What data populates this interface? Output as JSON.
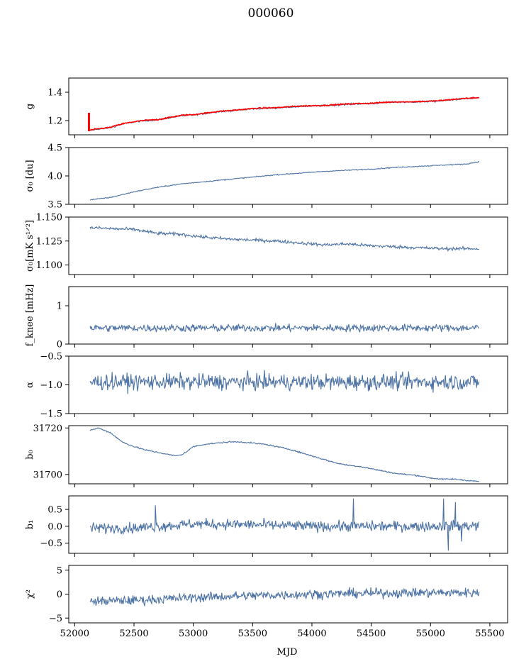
{
  "figure": {
    "title": "000060",
    "xlabel": "MJD"
  },
  "colors": {
    "series": "#4c72a4",
    "highlight": "#ff0000",
    "frame": "#000000"
  },
  "chart_data": [
    {
      "type": "line",
      "ylabel": "g",
      "xlim": [
        51950,
        55650
      ],
      "ylim": [
        1.1,
        1.5
      ],
      "yticks": [
        1.2,
        1.4
      ],
      "ytick_labels": [
        "1.2",
        "1.4"
      ],
      "x_range": [
        52120,
        55410
      ],
      "series": [
        {
          "x": [
            52120,
            52200,
            52300,
            52400,
            52500,
            52600,
            52700,
            52800,
            52900,
            53000,
            53100,
            53200,
            53300,
            53400,
            53500,
            53600,
            53700,
            53800,
            53900,
            54000,
            54100,
            54200,
            54300,
            54400,
            54500,
            54600,
            54700,
            54800,
            54900,
            55000,
            55100,
            55200,
            55300,
            55410
          ],
          "y": [
            1.13,
            1.14,
            1.15,
            1.175,
            1.19,
            1.2,
            1.205,
            1.22,
            1.235,
            1.24,
            1.25,
            1.262,
            1.268,
            1.275,
            1.283,
            1.287,
            1.289,
            1.295,
            1.3,
            1.303,
            1.305,
            1.31,
            1.315,
            1.318,
            1.32,
            1.326,
            1.33,
            1.33,
            1.332,
            1.335,
            1.34,
            1.348,
            1.355,
            1.36
          ]
        }
      ],
      "highlight_spike": {
        "x": 52120,
        "y_top": 1.255,
        "y_bottom": 1.125
      },
      "noise": 0.004
    },
    {
      "type": "line",
      "ylabel": "σ₀ [du]",
      "xlim": [
        51950,
        55650
      ],
      "ylim": [
        3.5,
        4.5
      ],
      "yticks": [
        3.5,
        4.0,
        4.5
      ],
      "ytick_labels": [
        "3.5",
        "4.0",
        "4.5"
      ],
      "x_range": [
        52130,
        55410
      ],
      "series": [
        {
          "x": [
            52130,
            52300,
            52500,
            52700,
            52900,
            53100,
            53300,
            53500,
            53700,
            53900,
            54100,
            54300,
            54500,
            54700,
            54900,
            55100,
            55300,
            55410
          ],
          "y": [
            3.58,
            3.62,
            3.72,
            3.8,
            3.86,
            3.9,
            3.94,
            3.98,
            4.02,
            4.05,
            4.08,
            4.1,
            4.12,
            4.15,
            4.17,
            4.19,
            4.21,
            4.25
          ]
        }
      ],
      "noise": 0.006
    },
    {
      "type": "line",
      "ylabel": "σ₀[mK s¹ᐟ²]",
      "xlim": [
        51950,
        55650
      ],
      "ylim": [
        1.09,
        1.15
      ],
      "yticks": [
        1.1,
        1.125,
        1.15
      ],
      "ytick_labels": [
        "1.100",
        "1.125",
        "1.150"
      ],
      "x_range": [
        52130,
        55410
      ],
      "series": [
        {
          "x": [
            52130,
            52300,
            52500,
            52700,
            52900,
            53100,
            53300,
            53500,
            53700,
            53900,
            54100,
            54300,
            54500,
            54700,
            54900,
            55100,
            55300,
            55410
          ],
          "y": [
            1.139,
            1.138,
            1.137,
            1.133,
            1.132,
            1.129,
            1.127,
            1.126,
            1.125,
            1.123,
            1.121,
            1.122,
            1.12,
            1.119,
            1.118,
            1.117,
            1.117,
            1.117
          ]
        }
      ],
      "noise": 0.0012
    },
    {
      "type": "line",
      "ylabel": "f_knee [mHz]",
      "xlim": [
        51950,
        55650
      ],
      "ylim": [
        0,
        1.5
      ],
      "yticks": [
        0,
        1
      ],
      "ytick_labels": [
        "0",
        "1"
      ],
      "x_range": [
        52130,
        55410
      ],
      "series": [
        {
          "x": [
            52130,
            55410
          ],
          "y": [
            0.42,
            0.42
          ]
        }
      ],
      "noise": 0.07
    },
    {
      "type": "line",
      "ylabel": "α",
      "xlim": [
        51950,
        55650
      ],
      "ylim": [
        -1.5,
        -0.5
      ],
      "yticks": [
        -1.5,
        -1.0,
        -0.5
      ],
      "ytick_labels": [
        "−1.5",
        "−1.0",
        "−0.5"
      ],
      "x_range": [
        52130,
        55410
      ],
      "series": [
        {
          "x": [
            52130,
            55410
          ],
          "y": [
            -0.95,
            -0.95
          ]
        }
      ],
      "noise": 0.1
    },
    {
      "type": "line",
      "ylabel": "b₀",
      "xlim": [
        51950,
        55650
      ],
      "ylim": [
        31696,
        31721
      ],
      "yticks": [
        31700,
        31720
      ],
      "ytick_labels": [
        "31700",
        "31720"
      ],
      "x_range": [
        52130,
        55410
      ],
      "series": [
        {
          "x": [
            52130,
            52200,
            52300,
            52400,
            52500,
            52600,
            52700,
            52800,
            52850,
            52900,
            52950,
            53000,
            53100,
            53200,
            53300,
            53400,
            53500,
            53600,
            53700,
            53800,
            53900,
            54000,
            54100,
            54200,
            54300,
            54400,
            54500,
            54600,
            54700,
            54800,
            54900,
            55000,
            55100,
            55200,
            55300,
            55410
          ],
          "y": [
            31719,
            31720,
            31718,
            31714,
            31712,
            31710.5,
            31709.5,
            31708.5,
            31708,
            31708.5,
            31710,
            31712,
            31713,
            31713.5,
            31714,
            31714,
            31713.5,
            31713,
            31712,
            31711,
            31709.5,
            31708,
            31706.5,
            31705,
            31704,
            31703.5,
            31702.5,
            31701.5,
            31700.5,
            31700,
            31699.5,
            31698.5,
            31698,
            31698,
            31697.5,
            31697
          ]
        }
      ],
      "noise": 0.2
    },
    {
      "type": "line",
      "ylabel": "b₁",
      "xlim": [
        51950,
        55650
      ],
      "ylim": [
        -0.8,
        0.9
      ],
      "yticks": [
        -0.5,
        0.0,
        0.5
      ],
      "ytick_labels": [
        "−0.5",
        "0.0",
        "0.5"
      ],
      "x_range": [
        52130,
        55410
      ],
      "series": [
        {
          "x": [
            52130,
            52500,
            53000,
            53500,
            54000,
            54500,
            55000,
            55410
          ],
          "y": [
            -0.05,
            -0.05,
            0.07,
            0.05,
            0.0,
            0.0,
            0.0,
            0.02
          ]
        }
      ],
      "spikes": [
        {
          "x": 52680,
          "y": 0.62
        },
        {
          "x": 54350,
          "y": 0.82
        },
        {
          "x": 55110,
          "y": 0.82
        },
        {
          "x": 55150,
          "y": -0.72
        },
        {
          "x": 55210,
          "y": 0.72
        },
        {
          "x": 55260,
          "y": -0.45
        }
      ],
      "noise": 0.11
    },
    {
      "type": "line",
      "ylabel": "χ²",
      "xlim": [
        51950,
        55650
      ],
      "ylim": [
        -6,
        6
      ],
      "yticks": [
        -5,
        0,
        5
      ],
      "ytick_labels": [
        "−5",
        "0",
        "5"
      ],
      "x_range": [
        52130,
        55410
      ],
      "series": [
        {
          "x": [
            52130,
            52500,
            53000,
            53500,
            54000,
            54500,
            55000,
            55410
          ],
          "y": [
            -1.5,
            -1.3,
            -0.7,
            -0.3,
            0.0,
            0.2,
            0.3,
            0.3
          ]
        }
      ],
      "noise": 0.7
    }
  ],
  "xaxis": {
    "ticks": [
      52000,
      52500,
      53000,
      53500,
      54000,
      54500,
      55000,
      55500
    ],
    "tick_labels": [
      "52000",
      "52500",
      "53000",
      "53500",
      "54000",
      "54500",
      "55000",
      "55500"
    ]
  }
}
